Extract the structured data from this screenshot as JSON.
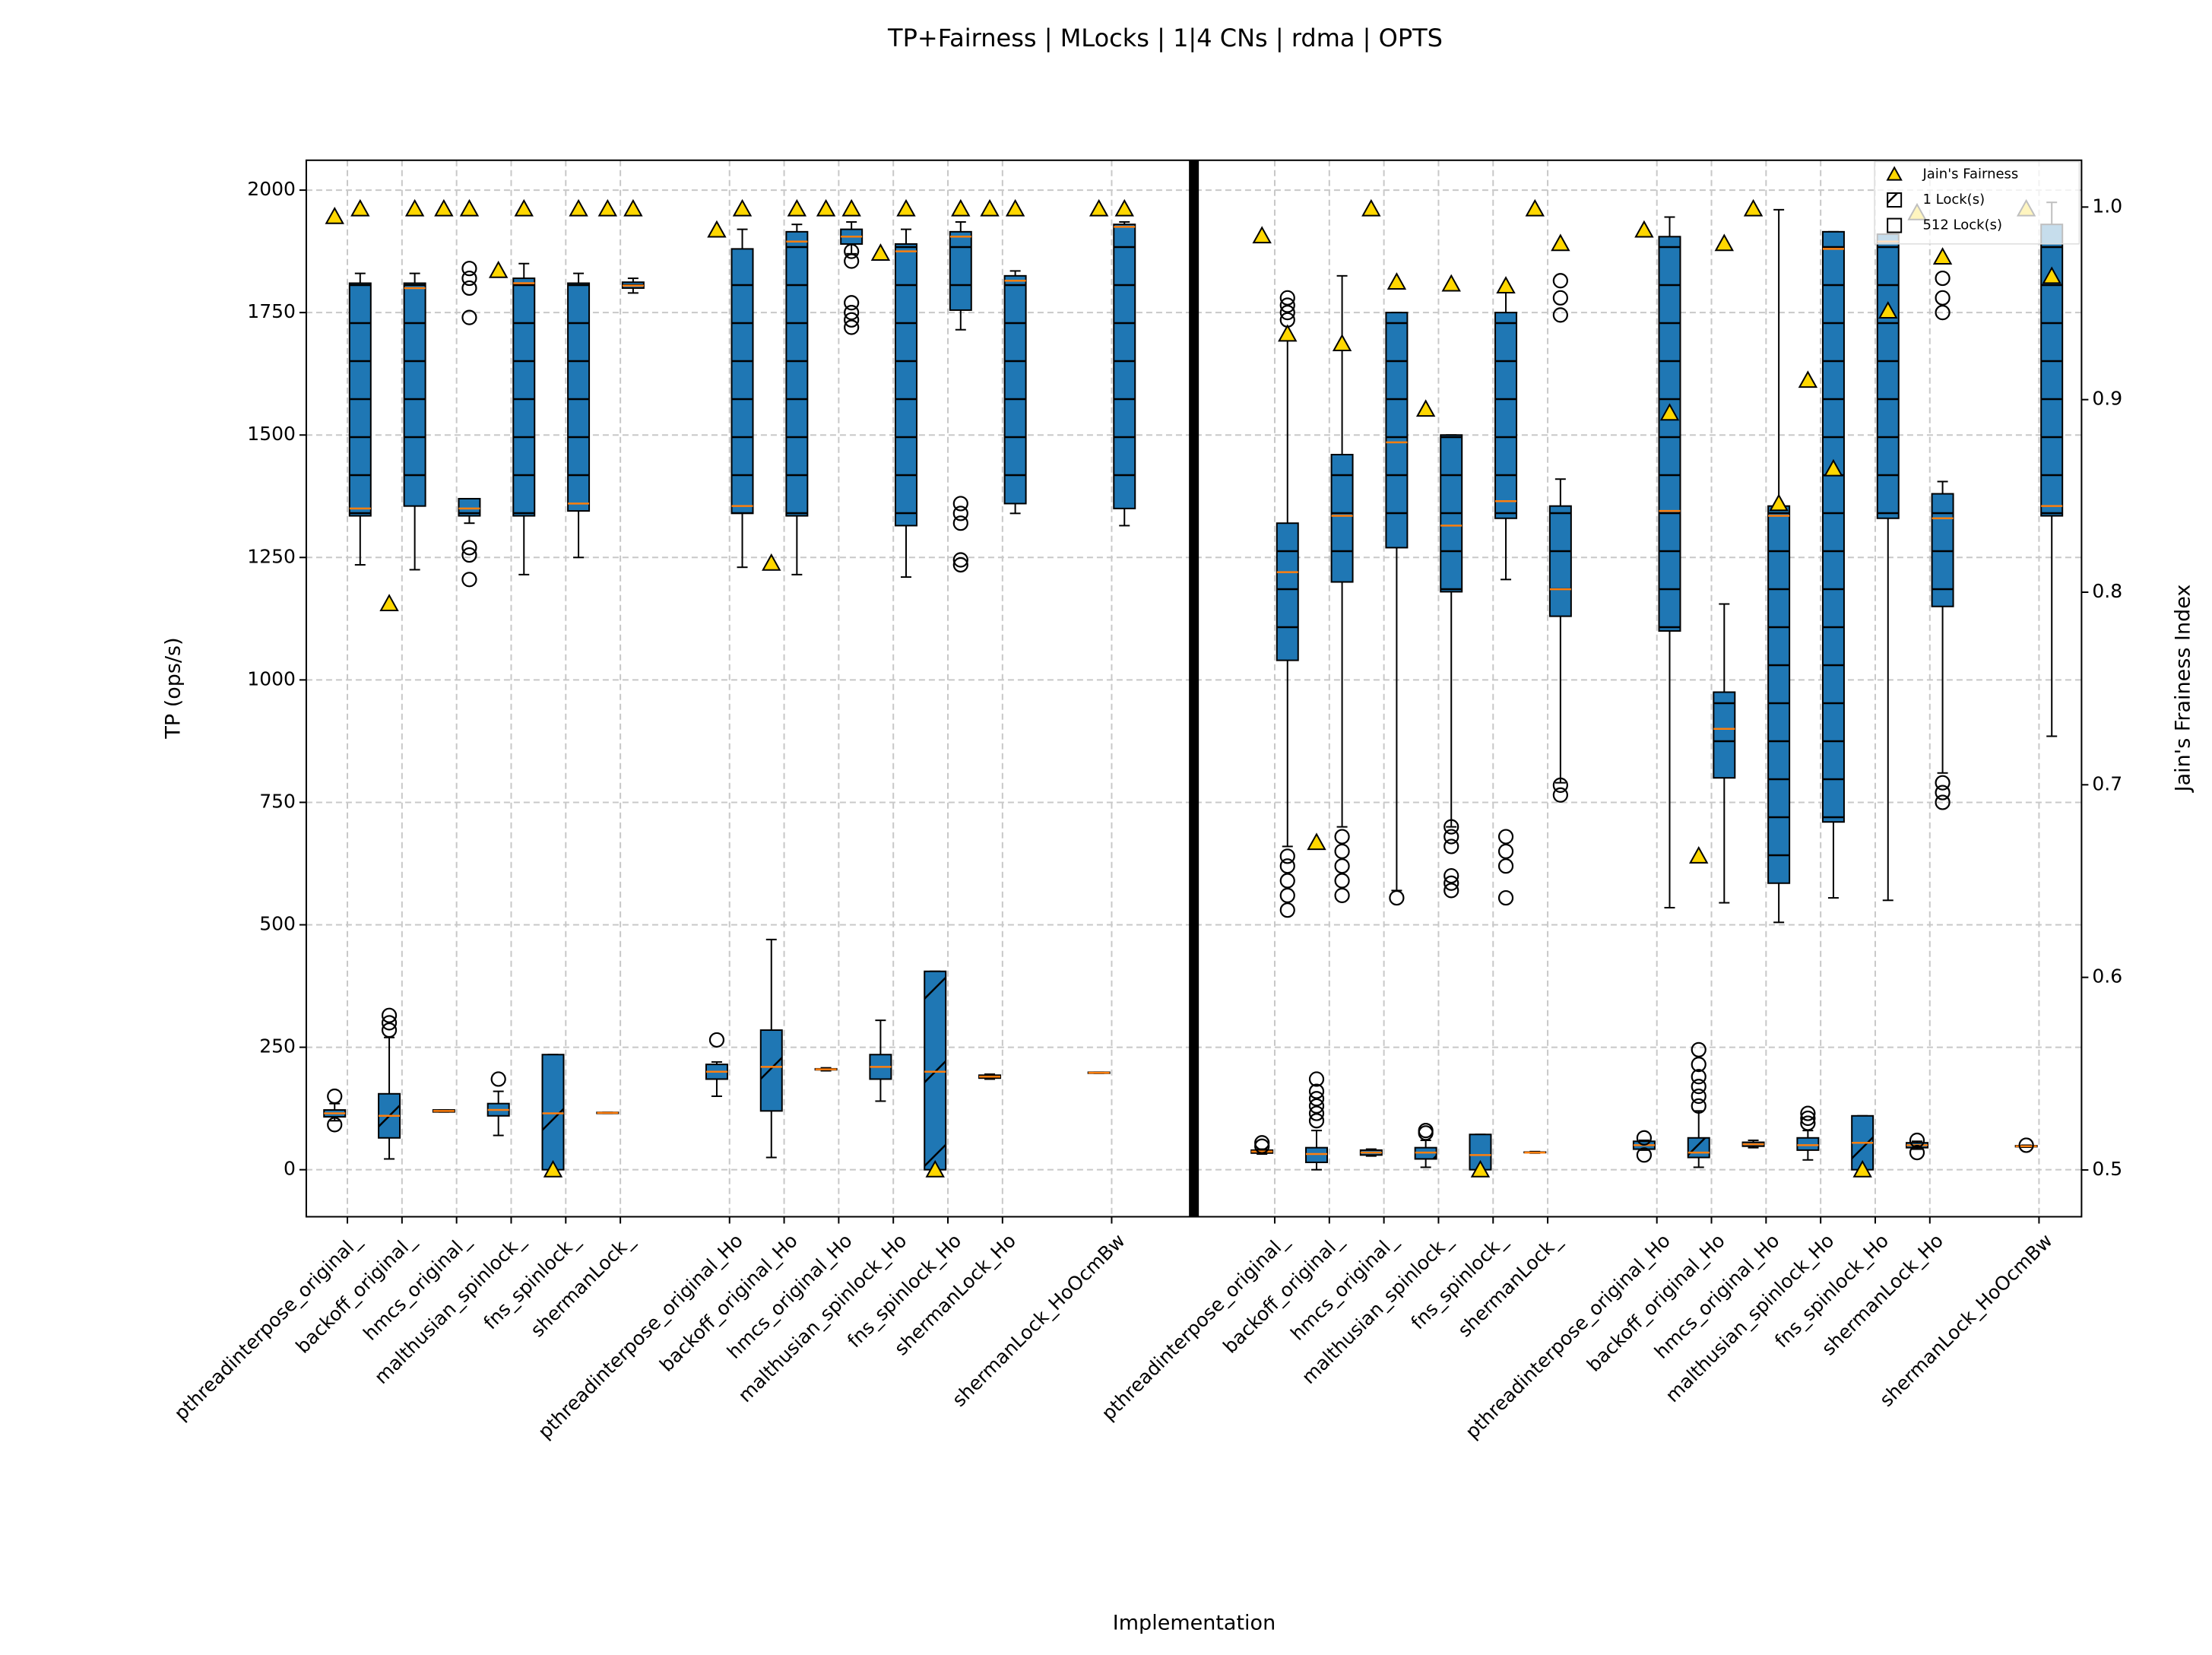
{
  "chart_data": {
    "type": "box",
    "title": "TP+Fairness | MLocks | 1|4 CNs | rdma | OPTS",
    "xlabel": "Implementation",
    "ylabel": "TP (ops/s)",
    "y2label": "Jain's Frainess Index",
    "categories": [
      "pthreadinterpose_original_",
      "backoff_original_",
      "hmcs_original_",
      "malthusian_spinlock_",
      "fns_spinlock_",
      "shermanLock_",
      "pthreadinterpose_original_Ho",
      "backoff_original_Ho",
      "hmcs_original_Ho",
      "malthusian_spinlock_Ho",
      "fns_spinlock_Ho",
      "shermanLock_Ho",
      "shermanLock_HoOcmBw",
      "pthreadinterpose_original_",
      "backoff_original_",
      "hmcs_original_",
      "malthusian_spinlock_",
      "fns_spinlock_",
      "shermanLock_",
      "pthreadinterpose_original_Ho",
      "backoff_original_Ho",
      "hmcs_original_Ho",
      "malthusian_spinlock_Ho",
      "fns_spinlock_Ho",
      "shermanLock_Ho",
      "shermanLock_HoOcmBw"
    ],
    "ylim": [
      -96,
      2061
    ],
    "yticks": [
      0,
      250,
      500,
      750,
      1000,
      1250,
      1500,
      1750,
      2000
    ],
    "y2lim": [
      0.4757,
      1.0243
    ],
    "y2ticks": [
      0.5,
      0.6,
      0.7,
      0.8,
      0.9,
      {
        "value": 1,
        "label": "1.0"
      }
    ],
    "grid": true,
    "legend": "upper right",
    "median_color": "#ff7f0e",
    "series": [
      {
        "name": "1 Lock(s)",
        "color": "#1f77b4",
        "hatch": "/",
        "values": [
          {
            "whislo": 100,
            "q1": 108,
            "med": 115,
            "q3": 122,
            "whishi": 135,
            "fliers": [
              150,
              92
            ]
          },
          {
            "whislo": 22,
            "q1": 65,
            "med": 110,
            "q3": 155,
            "whishi": 270,
            "fliers": [
              285,
              300,
              315
            ]
          },
          {
            "whislo": 118,
            "q1": 118,
            "med": 120,
            "q3": 122,
            "whishi": 122,
            "fliers": []
          },
          {
            "whislo": 70,
            "q1": 110,
            "med": 122,
            "q3": 135,
            "whishi": 160,
            "fliers": [
              185
            ]
          },
          {
            "whislo": 0,
            "q1": 0,
            "med": 115,
            "q3": 235,
            "whishi": 235,
            "fliers": []
          },
          {
            "whislo": 115,
            "q1": 115,
            "med": 116,
            "q3": 117,
            "whishi": 117,
            "fliers": []
          },
          {
            "whislo": 150,
            "q1": 185,
            "med": 200,
            "q3": 215,
            "whishi": 220,
            "fliers": [
              265
            ]
          },
          {
            "whislo": 25,
            "q1": 120,
            "med": 210,
            "q3": 285,
            "whishi": 470,
            "fliers": []
          },
          {
            "whislo": 202,
            "q1": 204,
            "med": 205,
            "q3": 206,
            "whishi": 208,
            "fliers": []
          },
          {
            "whislo": 140,
            "q1": 185,
            "med": 210,
            "q3": 235,
            "whishi": 305,
            "fliers": []
          },
          {
            "whislo": 0,
            "q1": 0,
            "med": 200,
            "q3": 405,
            "whishi": 405,
            "fliers": []
          },
          {
            "whislo": 185,
            "q1": 187,
            "med": 190,
            "q3": 193,
            "whishi": 195,
            "fliers": []
          },
          {
            "whislo": 197,
            "q1": 197,
            "med": 198,
            "q3": 199,
            "whishi": 199,
            "fliers": []
          },
          {
            "whislo": 32,
            "q1": 34,
            "med": 37,
            "q3": 40,
            "whishi": 42,
            "fliers": [
              55,
              48
            ]
          },
          {
            "whislo": 0,
            "q1": 15,
            "med": 32,
            "q3": 45,
            "whishi": 80,
            "fliers": [
              100,
              115,
              130,
              145,
              160,
              185
            ]
          },
          {
            "whislo": 28,
            "q1": 30,
            "med": 35,
            "q3": 40,
            "whishi": 42,
            "fliers": []
          },
          {
            "whislo": 5,
            "q1": 22,
            "med": 35,
            "q3": 45,
            "whishi": 60,
            "fliers": [
              75,
              80
            ]
          },
          {
            "whislo": 0,
            "q1": 0,
            "med": 30,
            "q3": 72,
            "whishi": 72,
            "fliers": []
          },
          {
            "whislo": 34,
            "q1": 35,
            "med": 35,
            "q3": 36,
            "whishi": 37,
            "fliers": []
          },
          {
            "whislo": 40,
            "q1": 42,
            "med": 50,
            "q3": 58,
            "whishi": 60,
            "fliers": [
              65,
              30
            ]
          },
          {
            "whislo": 5,
            "q1": 25,
            "med": 35,
            "q3": 65,
            "whishi": 120,
            "fliers": [
              130,
              150,
              170,
              190,
              215,
              245
            ]
          },
          {
            "whislo": 45,
            "q1": 48,
            "med": 52,
            "q3": 56,
            "whishi": 60,
            "fliers": []
          },
          {
            "whislo": 20,
            "q1": 40,
            "med": 50,
            "q3": 65,
            "whishi": 80,
            "fliers": [
              95,
              105,
              115
            ]
          },
          {
            "whislo": 0,
            "q1": 0,
            "med": 55,
            "q3": 110,
            "whishi": 110,
            "fliers": []
          },
          {
            "whislo": 42,
            "q1": 45,
            "med": 50,
            "q3": 55,
            "whishi": 58,
            "fliers": [
              35,
              60
            ]
          },
          {
            "whislo": 46,
            "q1": 47,
            "med": 48,
            "q3": 49,
            "whishi": 50,
            "fliers": [
              50
            ]
          }
        ]
      },
      {
        "name": "512 Lock(s)",
        "color": "#1f77b4",
        "hatch": "-",
        "values": [
          {
            "whislo": 1235,
            "q1": 1335,
            "med": 1350,
            "q3": 1810,
            "whishi": 1830,
            "fliers": []
          },
          {
            "whislo": 1225,
            "q1": 1355,
            "med": 1800,
            "q3": 1810,
            "whishi": 1830,
            "fliers": []
          },
          {
            "whislo": 1320,
            "q1": 1335,
            "med": 1350,
            "q3": 1370,
            "whishi": 1370,
            "fliers": [
              1840,
              1820,
              1800,
              1740,
              1270,
              1255,
              1205
            ]
          },
          {
            "whislo": 1215,
            "q1": 1335,
            "med": 1810,
            "q3": 1820,
            "whishi": 1850,
            "fliers": []
          },
          {
            "whislo": 1250,
            "q1": 1345,
            "med": 1360,
            "q3": 1810,
            "whishi": 1830,
            "fliers": []
          },
          {
            "whislo": 1790,
            "q1": 1800,
            "med": 1805,
            "q3": 1812,
            "whishi": 1820,
            "fliers": []
          },
          {
            "whislo": 1230,
            "q1": 1340,
            "med": 1355,
            "q3": 1880,
            "whishi": 1920,
            "fliers": []
          },
          {
            "whislo": 1215,
            "q1": 1335,
            "med": 1895,
            "q3": 1915,
            "whishi": 1930,
            "fliers": []
          },
          {
            "whislo": 1870,
            "q1": 1890,
            "med": 1905,
            "q3": 1920,
            "whishi": 1935,
            "fliers": [
              1855,
              1875,
              1770,
              1750,
              1735,
              1720
            ]
          },
          {
            "whislo": 1210,
            "q1": 1315,
            "med": 1875,
            "q3": 1890,
            "whishi": 1920,
            "fliers": []
          },
          {
            "whislo": 1715,
            "q1": 1755,
            "med": 1905,
            "q3": 1915,
            "whishi": 1935,
            "fliers": [
              1360,
              1340,
              1320,
              1245,
              1235
            ]
          },
          {
            "whislo": 1340,
            "q1": 1360,
            "med": 1815,
            "q3": 1825,
            "whishi": 1835,
            "fliers": []
          },
          {
            "whislo": 1315,
            "q1": 1350,
            "med": 1925,
            "q3": 1930,
            "whishi": 1935,
            "fliers": []
          },
          {
            "whislo": 660,
            "q1": 1040,
            "med": 1220,
            "q3": 1320,
            "whishi": 1705,
            "fliers": [
              530,
              560,
              590,
              620,
              640,
              1735,
              1750,
              1765,
              1780
            ]
          },
          {
            "whislo": 700,
            "q1": 1200,
            "med": 1335,
            "q3": 1460,
            "whishi": 1825,
            "fliers": [
              560,
              590,
              620,
              650,
              680
            ]
          },
          {
            "whislo": 570,
            "q1": 1270,
            "med": 1485,
            "q3": 1750,
            "whishi": 1750,
            "fliers": [
              555
            ]
          },
          {
            "whislo": 700,
            "q1": 1180,
            "med": 1315,
            "q3": 1500,
            "whishi": 1500,
            "fliers": [
              570,
              585,
              600,
              660,
              680,
              700
            ]
          },
          {
            "whislo": 1205,
            "q1": 1330,
            "med": 1365,
            "q3": 1750,
            "whishi": 1800,
            "fliers": [
              555,
              620,
              650,
              680
            ]
          },
          {
            "whislo": 790,
            "q1": 1130,
            "med": 1185,
            "q3": 1355,
            "whishi": 1410,
            "fliers": [
              765,
              785,
              1745,
              1780,
              1815
            ]
          },
          {
            "whislo": 535,
            "q1": 1100,
            "med": 1345,
            "q3": 1905,
            "whishi": 1945,
            "fliers": []
          },
          {
            "whislo": 545,
            "q1": 800,
            "med": 900,
            "q3": 975,
            "whishi": 1155,
            "fliers": []
          },
          {
            "whislo": 505,
            "q1": 585,
            "med": 1335,
            "q3": 1355,
            "whishi": 1960,
            "fliers": []
          },
          {
            "whislo": 555,
            "q1": 710,
            "med": 1880,
            "q3": 1915,
            "whishi": 1915,
            "fliers": []
          },
          {
            "whislo": 550,
            "q1": 1330,
            "med": 1895,
            "q3": 1910,
            "whishi": 1910,
            "fliers": []
          },
          {
            "whislo": 810,
            "q1": 1150,
            "med": 1330,
            "q3": 1380,
            "whishi": 1405,
            "fliers": [
              750,
              770,
              790,
              1750,
              1780,
              1820
            ]
          },
          {
            "whislo": 885,
            "q1": 1335,
            "med": 1355,
            "q3": 1930,
            "whishi": 1975,
            "fliers": []
          }
        ]
      },
      {
        "name": "Jain's Fairness",
        "color": "#ffd700",
        "axis": "y2",
        "values": [
          [
            0.995,
            0.999
          ],
          [
            0.794,
            0.999
          ],
          [
            0.999,
            0.999
          ],
          [
            0.967,
            0.999
          ],
          [
            0.5,
            0.999
          ],
          [
            0.999,
            0.999
          ],
          [
            0.988,
            0.999
          ],
          [
            0.815,
            0.999
          ],
          [
            0.999,
            0.999
          ],
          [
            0.976,
            0.999
          ],
          [
            0.5,
            0.999
          ],
          [
            0.999,
            0.999
          ],
          [
            0.999,
            0.999
          ],
          [
            0.985,
            0.934
          ],
          [
            0.67,
            0.929
          ],
          [
            0.999,
            0.961
          ],
          [
            0.895,
            0.96
          ],
          [
            0.5,
            0.959
          ],
          [
            0.999,
            0.981
          ],
          [
            0.988,
            0.893
          ],
          [
            0.663,
            0.981
          ],
          [
            0.999,
            0.846
          ],
          [
            0.91,
            0.864
          ],
          [
            0.5,
            0.946
          ],
          [
            0.997,
            0.974
          ],
          [
            0.999,
            0.964
          ]
        ]
      }
    ]
  }
}
